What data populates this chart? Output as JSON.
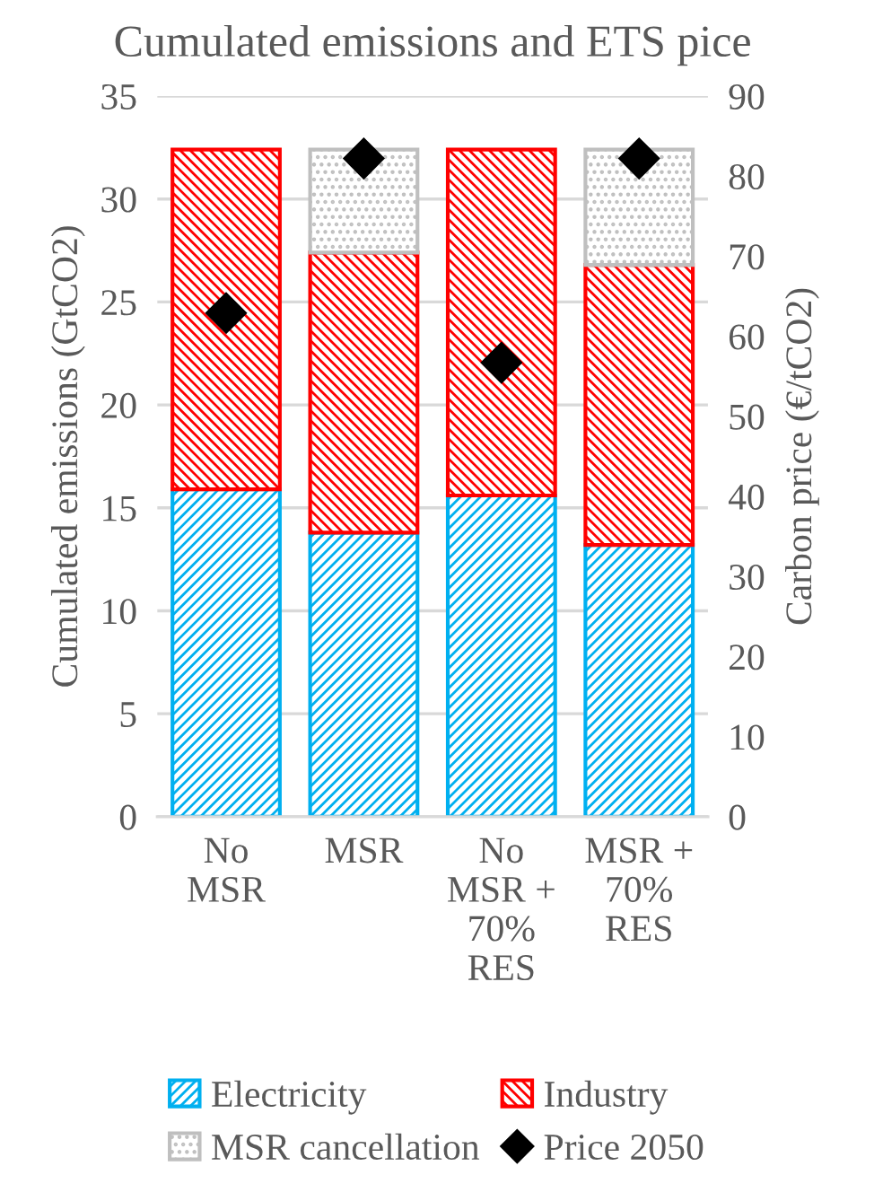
{
  "chart_data": {
    "type": "bar",
    "title": "Cumulated emissions and ETS pice",
    "ylabel": "Cumulated emissions (GtCO2)",
    "y2label": "Carbon price (€/tCO2)",
    "categories": [
      "No\nMSR",
      "MSR",
      "No\nMSR +\n70%\nRES",
      "MSR +\n70%\nRES"
    ],
    "stacked": true,
    "series": [
      {
        "name": "Electricity",
        "color": "#00b0f0",
        "values": [
          15.9,
          13.8,
          15.6,
          13.2
        ]
      },
      {
        "name": "Industry",
        "color": "#ff0000",
        "values": [
          16.5,
          13.6,
          16.8,
          13.6
        ]
      },
      {
        "name": "MSR cancellation",
        "color": "#bfbfbf",
        "values": [
          0,
          5.0,
          0,
          5.6
        ]
      },
      {
        "name": "Price 2050",
        "type": "scatter",
        "axis": "y2",
        "marker": "diamond",
        "color": "#000000",
        "values": [
          62.9,
          82.2,
          56.7,
          82.2
        ]
      }
    ],
    "ylim": [
      0,
      35
    ],
    "yticks": [
      0,
      5,
      10,
      15,
      20,
      25,
      30,
      35
    ],
    "y2lim": [
      0,
      90
    ],
    "y2ticks": [
      0,
      10,
      20,
      30,
      40,
      50,
      60,
      70,
      80,
      90
    ],
    "grid": "y",
    "legend": "bottom"
  }
}
